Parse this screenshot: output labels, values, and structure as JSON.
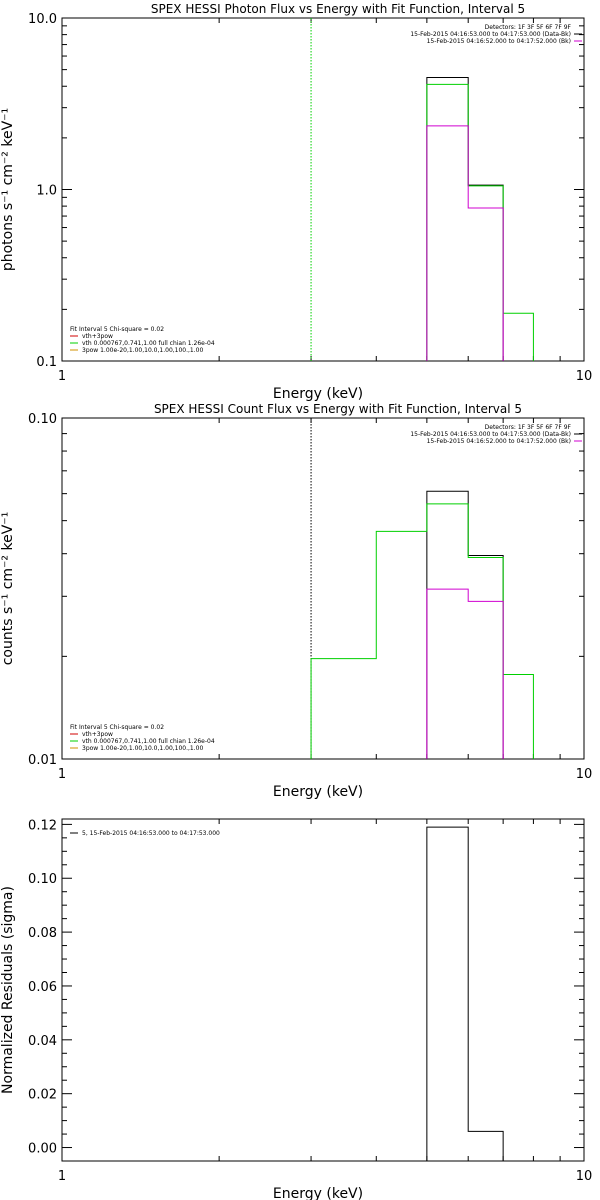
{
  "colors": {
    "black": "#000000",
    "magenta": "#d000d0",
    "green": "#00d000",
    "orange": "#d09000",
    "red": "#d00000",
    "background": "#ffffff"
  },
  "chart_data": [
    {
      "type": "line",
      "title": "SPEX HESSI Photon Flux vs Energy with Fit Function, Interval 5",
      "xlabel": "Energy (keV)",
      "ylabel": "photons s⁻¹ cm⁻² keV⁻¹",
      "xscale": "log",
      "yscale": "log",
      "xlim": [
        1,
        10
      ],
      "ylim": [
        0.1,
        10.0
      ],
      "xticks": [
        {
          "v": 1,
          "label": "1"
        },
        {
          "v": 10,
          "label": "10"
        }
      ],
      "yticks": [
        {
          "v": 0.1,
          "label": "0.1"
        },
        {
          "v": 1.0,
          "label": "1.0"
        },
        {
          "v": 10.0,
          "label": "10.0"
        }
      ],
      "vlines": [
        {
          "x": 3.0,
          "color": "#00d000",
          "style": "dotted"
        }
      ],
      "header_text": [
        {
          "text": "Detectors: 1F 3F 5F 6F 7F 9F",
          "color": "#000000"
        },
        {
          "text": "15-Feb-2015 04:16:53.000 to 04:17:53.000 (Data-Bk)",
          "color": "#000000"
        },
        {
          "text": "15-Feb-2015 04:16:52.000 to 04:17:52.000 (Bk)",
          "color": "#d000d0"
        }
      ],
      "legend": {
        "placement": "bottom-left",
        "title": "Fit Interval 5   Chi-square = 0.02",
        "entries": [
          {
            "name": "vth+3pow",
            "color": "#d00000"
          },
          {
            "name": "vth 0.000767,0.741,1.00  full chian 1.26e-04",
            "color": "#00d000"
          },
          {
            "name": "3pow 1.00e-20,1.00,10.0,1.00,100.,1.00",
            "color": "#d09000"
          }
        ]
      },
      "series": [
        {
          "color": "#000000",
          "bins": [
            {
              "lo": 5.0,
              "hi": 6.0,
              "y": 4.5
            },
            {
              "lo": 6.0,
              "hi": 7.0,
              "y": 1.06
            }
          ]
        },
        {
          "color": "#00d000",
          "bins": [
            {
              "lo": 5.0,
              "hi": 6.0,
              "y": 4.1
            },
            {
              "lo": 6.0,
              "hi": 7.0,
              "y": 1.05
            },
            {
              "lo": 7.0,
              "hi": 8.0,
              "y": 0.19
            }
          ]
        },
        {
          "color": "#d000d0",
          "bins": [
            {
              "lo": 5.0,
              "hi": 6.0,
              "y": 2.35
            },
            {
              "lo": 6.0,
              "hi": 7.0,
              "y": 0.78
            }
          ]
        }
      ]
    },
    {
      "type": "line",
      "title": "SPEX HESSI Count Flux vs Energy with Fit Function, Interval 5",
      "xlabel": "Energy (keV)",
      "ylabel": "counts s⁻¹ cm⁻² keV⁻¹",
      "xscale": "log",
      "yscale": "log",
      "xlim": [
        1,
        10
      ],
      "ylim": [
        0.01,
        0.1
      ],
      "xticks": [
        {
          "v": 1,
          "label": "1"
        },
        {
          "v": 10,
          "label": "10"
        }
      ],
      "yticks": [
        {
          "v": 0.01,
          "label": "0.01"
        },
        {
          "v": 0.1,
          "label": "0.10"
        }
      ],
      "vlines": [
        {
          "x": 3.0,
          "color": "#000000",
          "style": "dotted"
        }
      ],
      "header_text": [
        {
          "text": "Detectors: 1F 3F 5F 6F 7F 9F",
          "color": "#000000"
        },
        {
          "text": "15-Feb-2015 04:16:53.000 to 04:17:53.000 (Data-Bk)",
          "color": "#000000"
        },
        {
          "text": "15-Feb-2015 04:16:52.000 to 04:17:52.000 (Bk)",
          "color": "#d000d0"
        }
      ],
      "legend": {
        "placement": "bottom-left",
        "title": "Fit Interval 5   Chi-square = 0.02",
        "entries": [
          {
            "name": "vth+3pow",
            "color": "#d00000"
          },
          {
            "name": "vth 0.000767,0.741,1.00  full chian 1.26e-04",
            "color": "#00d000"
          },
          {
            "name": "3pow 1.00e-20,1.00,10.0,1.00,100.,1.00",
            "color": "#d09000"
          }
        ]
      },
      "series": [
        {
          "color": "#000000",
          "bins": [
            {
              "lo": 5.0,
              "hi": 6.0,
              "y": 0.061
            },
            {
              "lo": 6.0,
              "hi": 7.0,
              "y": 0.0395
            }
          ]
        },
        {
          "color": "#00d000",
          "bins": [
            {
              "lo": 3.0,
              "hi": 4.0,
              "y": 0.0197
            },
            {
              "lo": 4.0,
              "hi": 5.0,
              "y": 0.0465
            },
            {
              "lo": 5.0,
              "hi": 6.0,
              "y": 0.056
            },
            {
              "lo": 6.0,
              "hi": 7.0,
              "y": 0.039
            },
            {
              "lo": 7.0,
              "hi": 8.0,
              "y": 0.0177
            }
          ]
        },
        {
          "color": "#d000d0",
          "bins": [
            {
              "lo": 5.0,
              "hi": 6.0,
              "y": 0.0315
            },
            {
              "lo": 6.0,
              "hi": 7.0,
              "y": 0.029
            }
          ]
        }
      ]
    },
    {
      "type": "line",
      "title": "",
      "xlabel": "Energy (keV)",
      "ylabel": "Normalized Residuals (sigma)",
      "xscale": "log",
      "yscale": "linear",
      "xlim": [
        1,
        10
      ],
      "ylim": [
        -0.005,
        0.122
      ],
      "xticks": [
        {
          "v": 1,
          "label": "1"
        },
        {
          "v": 10,
          "label": "10"
        }
      ],
      "yticks": [
        {
          "v": 0.0,
          "label": "0.00"
        },
        {
          "v": 0.02,
          "label": "0.02"
        },
        {
          "v": 0.04,
          "label": "0.04"
        },
        {
          "v": 0.06,
          "label": "0.06"
        },
        {
          "v": 0.08,
          "label": "0.08"
        },
        {
          "v": 0.1,
          "label": "0.10"
        },
        {
          "v": 0.12,
          "label": "0.12"
        }
      ],
      "vlines": [],
      "header_text": [],
      "legend": {
        "placement": "top-left",
        "title": "",
        "entries": [
          {
            "name": "5, 15-Feb-2015 04:16:53.000 to 04:17:53.000",
            "color": "#000000"
          }
        ]
      },
      "series": [
        {
          "color": "#000000",
          "baseline": -0.005,
          "bins": [
            {
              "lo": 5.0,
              "hi": 6.0,
              "y": 0.119
            },
            {
              "lo": 6.0,
              "hi": 7.0,
              "y": 0.006
            }
          ]
        }
      ]
    }
  ]
}
